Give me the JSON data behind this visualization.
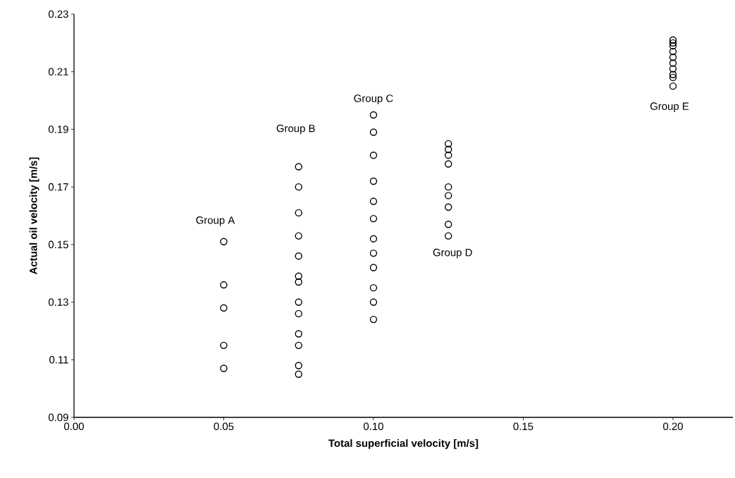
{
  "chart_data": {
    "type": "scatter",
    "xlabel": "Total superficial velocity  [m/s]",
    "ylabel": "Actual oil velocity  [m/s]",
    "xlim": [
      0,
      0.22
    ],
    "ylim": [
      0.09,
      0.23
    ],
    "xticks": [
      {
        "value": 0,
        "label": "0.00"
      },
      {
        "value": 0.05,
        "label": "0.05"
      },
      {
        "value": 0.1,
        "label": "0.10"
      },
      {
        "value": 0.15,
        "label": "0.15"
      },
      {
        "value": 0.2,
        "label": "0.20"
      }
    ],
    "yticks": [
      {
        "value": 0.09,
        "label": "0.09"
      },
      {
        "value": 0.11,
        "label": "0.11"
      },
      {
        "value": 0.13,
        "label": "0.13"
      },
      {
        "value": 0.15,
        "label": "0.15"
      },
      {
        "value": 0.17,
        "label": "0.17"
      },
      {
        "value": 0.19,
        "label": "0.19"
      },
      {
        "value": 0.21,
        "label": "0.21"
      },
      {
        "value": 0.23,
        "label": "0.23"
      }
    ],
    "grid": false,
    "marker": "circle",
    "series": [
      {
        "color": "#000000",
        "x": [
          0.05,
          0.05,
          0.05,
          0.05,
          0.05,
          0.075,
          0.075,
          0.075,
          0.075,
          0.075,
          0.075,
          0.075,
          0.075,
          0.075,
          0.075,
          0.075,
          0.075,
          0.075,
          0.1,
          0.1,
          0.1,
          0.1,
          0.1,
          0.1,
          0.1,
          0.1,
          0.1,
          0.1,
          0.1,
          0.1,
          0.125,
          0.125,
          0.125,
          0.125,
          0.125,
          0.125,
          0.125,
          0.125,
          0.125,
          0.2,
          0.2,
          0.2,
          0.2,
          0.2,
          0.2,
          0.2,
          0.2,
          0.2,
          0.2
        ],
        "values": [
          0.151,
          0.136,
          0.128,
          0.115,
          0.107,
          0.177,
          0.17,
          0.161,
          0.153,
          0.146,
          0.139,
          0.137,
          0.13,
          0.126,
          0.119,
          0.115,
          0.108,
          0.105,
          0.195,
          0.189,
          0.181,
          0.172,
          0.165,
          0.159,
          0.152,
          0.147,
          0.142,
          0.135,
          0.13,
          0.124,
          0.185,
          0.183,
          0.181,
          0.178,
          0.17,
          0.167,
          0.163,
          0.157,
          0.153,
          0.221,
          0.22,
          0.219,
          0.217,
          0.215,
          0.213,
          0.211,
          0.209,
          0.208,
          0.205
        ]
      }
    ],
    "annotations": [
      "Group A",
      "Group B",
      "Group C",
      "Group D",
      "Group E"
    ]
  }
}
